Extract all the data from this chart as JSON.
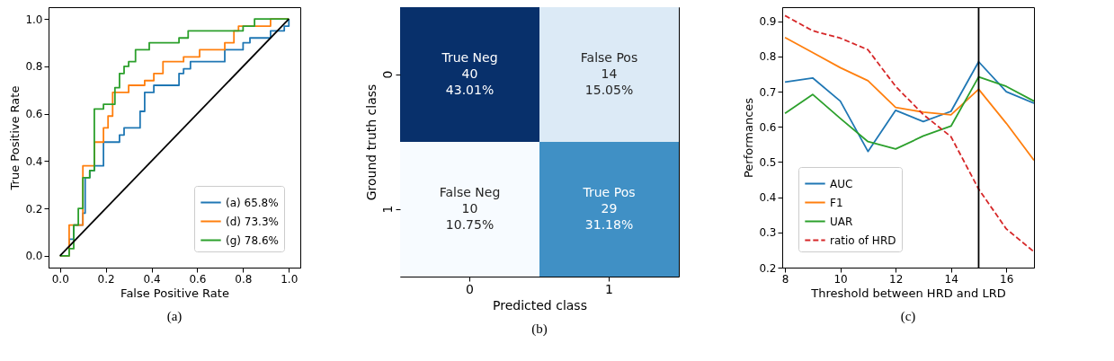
{
  "chart_data": [
    {
      "type": "line",
      "xlabel": "False Positive Rate",
      "ylabel": "True Positive Rate",
      "annotations": [
        "(a)"
      ],
      "legend": "bottom right",
      "xlim": [
        -0.05,
        1.05
      ],
      "ylim": [
        -0.05,
        1.05
      ],
      "xticks": [
        {
          "value": 0,
          "label": "0.0"
        },
        0.2,
        0.4,
        0.6,
        0.8,
        {
          "value": 1,
          "label": "1.0"
        }
      ],
      "yticks": [
        {
          "value": 0,
          "label": "0.0"
        },
        0.2,
        0.4,
        0.6,
        0.8,
        {
          "value": 1,
          "label": "1.0"
        }
      ],
      "series": [
        {
          "name": "(a) 65.8%",
          "color": "#1f77b4",
          "x": [
            0,
            0.04,
            0.04,
            0.06,
            0.06,
            0.1,
            0.1,
            0.11,
            0.11,
            0.13,
            0.13,
            0.15,
            0.15,
            0.19,
            0.19,
            0.26,
            0.26,
            0.28,
            0.28,
            0.35,
            0.35,
            0.37,
            0.37,
            0.41,
            0.41,
            0.52,
            0.52,
            0.54,
            0.54,
            0.57,
            0.57,
            0.72,
            0.72,
            0.8,
            0.8,
            0.83,
            0.83,
            0.92,
            0.92,
            0.98,
            0.98,
            1,
            1
          ],
          "values": [
            0,
            0,
            0.07,
            0.07,
            0.13,
            0.13,
            0.18,
            0.18,
            0.33,
            0.33,
            0.36,
            0.36,
            0.38,
            0.38,
            0.48,
            0.48,
            0.51,
            0.51,
            0.54,
            0.54,
            0.61,
            0.61,
            0.69,
            0.69,
            0.72,
            0.72,
            0.77,
            0.77,
            0.79,
            0.79,
            0.82,
            0.82,
            0.87,
            0.87,
            0.9,
            0.9,
            0.92,
            0.92,
            0.95,
            0.95,
            0.97,
            0.97,
            1
          ]
        },
        {
          "name": "(d) 73.3%",
          "color": "#ff7f0e",
          "x": [
            0,
            0.04,
            0.04,
            0.1,
            0.1,
            0.15,
            0.15,
            0.19,
            0.19,
            0.21,
            0.21,
            0.23,
            0.23,
            0.3,
            0.3,
            0.37,
            0.37,
            0.41,
            0.41,
            0.45,
            0.45,
            0.54,
            0.54,
            0.61,
            0.61,
            0.72,
            0.72,
            0.76,
            0.76,
            0.78,
            0.78,
            0.92,
            0.92,
            1
          ],
          "values": [
            0,
            0,
            0.13,
            0.13,
            0.38,
            0.38,
            0.48,
            0.48,
            0.54,
            0.54,
            0.59,
            0.59,
            0.69,
            0.69,
            0.72,
            0.72,
            0.74,
            0.74,
            0.77,
            0.77,
            0.82,
            0.82,
            0.84,
            0.84,
            0.87,
            0.87,
            0.9,
            0.9,
            0.95,
            0.95,
            0.97,
            0.97,
            1,
            1
          ]
        },
        {
          "name": "(g) 78.6%",
          "color": "#2ca02c",
          "x": [
            0,
            0.04,
            0.04,
            0.06,
            0.06,
            0.08,
            0.08,
            0.1,
            0.1,
            0.13,
            0.13,
            0.15,
            0.15,
            0.19,
            0.19,
            0.24,
            0.24,
            0.26,
            0.26,
            0.28,
            0.28,
            0.3,
            0.3,
            0.33,
            0.33,
            0.39,
            0.39,
            0.52,
            0.52,
            0.56,
            0.56,
            0.8,
            0.8,
            0.85,
            0.85,
            1
          ],
          "values": [
            0,
            0,
            0.03,
            0.03,
            0.13,
            0.13,
            0.2,
            0.2,
            0.33,
            0.33,
            0.36,
            0.36,
            0.62,
            0.62,
            0.64,
            0.64,
            0.71,
            0.71,
            0.77,
            0.77,
            0.8,
            0.8,
            0.82,
            0.82,
            0.87,
            0.87,
            0.9,
            0.9,
            0.92,
            0.92,
            0.95,
            0.95,
            0.97,
            0.97,
            1,
            1
          ]
        },
        {
          "color": "#000000",
          "x": [
            0,
            1
          ],
          "values": [
            0,
            1
          ]
        }
      ]
    },
    {
      "type": "heatmap",
      "xlabel": "Predicted class",
      "ylabel": "Ground truth class",
      "annotations": [
        "True Neg",
        "43.01%",
        "False Pos",
        "15.05%",
        "False Neg",
        "10.75%",
        "True Pos",
        "31.18%",
        "(b)"
      ],
      "categories": [
        "0",
        "1"
      ],
      "y_categories": [
        "0",
        "1"
      ],
      "cells": [
        [
          40,
          14
        ],
        [
          10,
          29
        ]
      ],
      "data_labels": true
    },
    {
      "type": "line",
      "xlabel": "Threshold between HRD and LRD",
      "ylabel": "Performances",
      "annotations": [
        "(c)"
      ],
      "legend": "bottom left",
      "xlim": [
        7.9,
        17
      ],
      "ylim": [
        0.2,
        0.94
      ],
      "xticks": [
        8,
        10,
        12,
        14,
        16
      ],
      "yticks": [
        0.2,
        0.3,
        0.4,
        0.5,
        0.6,
        0.7,
        0.8,
        0.9
      ],
      "x": [
        8,
        9,
        10,
        11,
        12,
        13,
        14,
        15,
        16,
        17
      ],
      "series": [
        {
          "name": "AUC",
          "color": "#1f77b4",
          "values": [
            0.727,
            0.739,
            0.673,
            0.53,
            0.647,
            0.615,
            0.644,
            0.785,
            0.7,
            0.667
          ]
        },
        {
          "name": "F1",
          "color": "#ff7f0e",
          "values": [
            0.854,
            0.811,
            0.768,
            0.731,
            0.655,
            0.642,
            0.634,
            0.707,
            0.61,
            0.505
          ]
        },
        {
          "name": "UAR",
          "color": "#2ca02c",
          "values": [
            0.638,
            0.692,
            0.624,
            0.558,
            0.537,
            0.574,
            0.602,
            0.742,
            0.715,
            0.673
          ]
        },
        {
          "name": "ratio of HRD",
          "color": "#d62728",
          "line_style": "dashed",
          "values": [
            0.916,
            0.873,
            0.852,
            0.819,
            0.715,
            0.635,
            0.572,
            0.423,
            0.31,
            0.245
          ]
        }
      ],
      "ref_lines": [
        {
          "axis": "x",
          "value": 15,
          "color": "#000000"
        }
      ]
    }
  ]
}
